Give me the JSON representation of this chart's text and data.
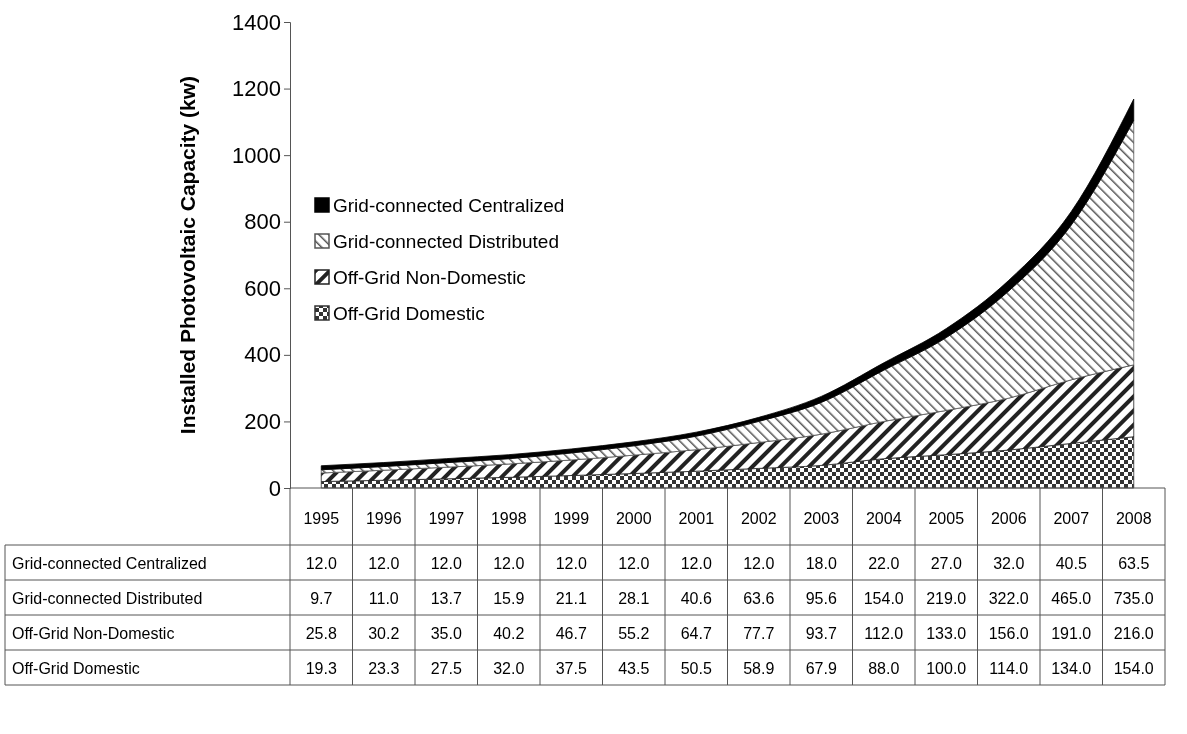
{
  "chart_data": {
    "type": "area",
    "stacked": true,
    "ylabel": "Installed Photovoltaic Capacity (kw)",
    "categories": [
      "1995",
      "1996",
      "1997",
      "1998",
      "1999",
      "2000",
      "2001",
      "2002",
      "2003",
      "2004",
      "2005",
      "2006",
      "2007",
      "2008"
    ],
    "ylim": [
      0,
      1400
    ],
    "yticks": [
      0,
      200,
      400,
      600,
      800,
      1000,
      1200,
      1400
    ],
    "grid": false,
    "legend": "left",
    "series": [
      {
        "name": "Off-Grid Domestic",
        "color": "#333333",
        "values": [
          19.3,
          23.3,
          27.5,
          32.0,
          37.5,
          43.5,
          50.5,
          58.9,
          67.9,
          88.0,
          100.0,
          114.0,
          134.0,
          154.0
        ],
        "value_labels": [
          "19.3",
          "23.3",
          "27.5",
          "32.0",
          "37.5",
          "43.5",
          "50.5",
          "58.9",
          "67.9",
          "88.0",
          "100.0",
          "114.0",
          "134.0",
          "154.0"
        ]
      },
      {
        "name": "Off-Grid Non-Domestic",
        "color": "#222222",
        "values": [
          25.8,
          30.2,
          35.0,
          40.2,
          46.7,
          55.2,
          64.7,
          77.7,
          93.7,
          112.0,
          133.0,
          156.0,
          191.0,
          216.0
        ],
        "value_labels": [
          "25.8",
          "30.2",
          "35.0",
          "40.2",
          "46.7",
          "55.2",
          "64.7",
          "77.7",
          "93.7",
          "112.0",
          "133.0",
          "156.0",
          "191.0",
          "216.0"
        ]
      },
      {
        "name": "Grid-connected Distributed",
        "color": "#555555",
        "values": [
          9.7,
          11.0,
          13.7,
          15.9,
          21.1,
          28.1,
          40.6,
          63.6,
          95.6,
          154.0,
          219.0,
          322.0,
          465.0,
          735.0
        ],
        "value_labels": [
          "9.7",
          "11.0",
          "13.7",
          "15.9",
          "21.1",
          "28.1",
          "40.6",
          "63.6",
          "95.6",
          "154.0",
          "219.0",
          "322.0",
          "465.0",
          "735.0"
        ]
      },
      {
        "name": "Grid-connected Centralized",
        "color": "#000000",
        "values": [
          12.0,
          12.0,
          12.0,
          12.0,
          12.0,
          12.0,
          12.0,
          12.0,
          18.0,
          22.0,
          27.0,
          32.0,
          40.5,
          63.5
        ],
        "value_labels": [
          "12.0",
          "12.0",
          "12.0",
          "12.0",
          "12.0",
          "12.0",
          "12.0",
          "12.0",
          "18.0",
          "22.0",
          "27.0",
          "32.0",
          "40.5",
          "63.5"
        ]
      }
    ]
  }
}
